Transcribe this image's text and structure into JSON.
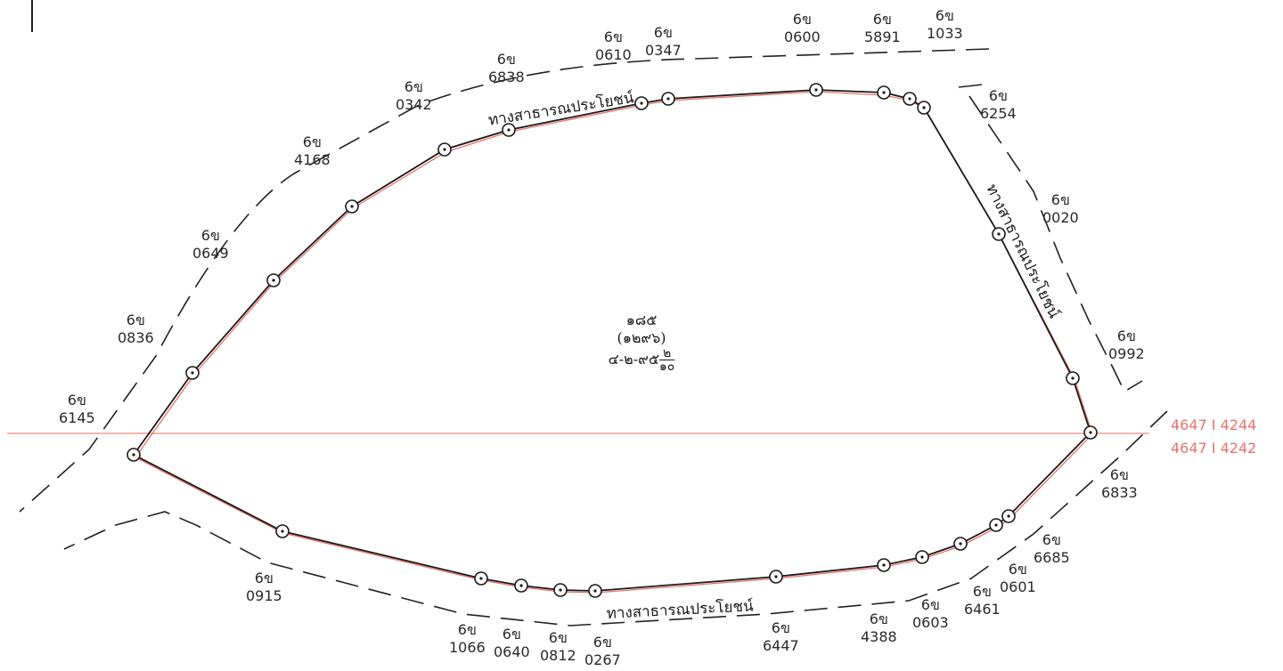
{
  "parcel": {
    "number": "๑๘๕",
    "sub_number": "(๑๒๙๖)",
    "area_main": "๔-๒-๙๕",
    "area_frac_num": "๒",
    "area_frac_den": "๑๐"
  },
  "roads": {
    "north": "ทางสาธารณประโยชน์",
    "east": "ทางสาธารณประโยชน์",
    "south": "ทางสาธารณประโยชน์"
  },
  "grid": {
    "upper": "4647 I 4244",
    "lower": "4647 I 4242"
  },
  "neighbors": [
    {
      "prefix": "6ข",
      "number": "6145"
    },
    {
      "prefix": "6ข",
      "number": "0836"
    },
    {
      "prefix": "6ข",
      "number": "0649"
    },
    {
      "prefix": "6ข",
      "number": "4168"
    },
    {
      "prefix": "6ข",
      "number": "0342"
    },
    {
      "prefix": "6ข",
      "number": "6838"
    },
    {
      "prefix": "6ข",
      "number": "0610"
    },
    {
      "prefix": "6ข",
      "number": "0347"
    },
    {
      "prefix": "6ข",
      "number": "0600"
    },
    {
      "prefix": "6ข",
      "number": "5891"
    },
    {
      "prefix": "6ข",
      "number": "1033"
    },
    {
      "prefix": "6ข",
      "number": "6254"
    },
    {
      "prefix": "6ข",
      "number": "0020"
    },
    {
      "prefix": "6ข",
      "number": "0992"
    },
    {
      "prefix": "6ข",
      "number": "6833"
    },
    {
      "prefix": "6ข",
      "number": "6685"
    },
    {
      "prefix": "6ข",
      "number": "0601"
    },
    {
      "prefix": "6ข",
      "number": "6461"
    },
    {
      "prefix": "6ข",
      "number": "0603"
    },
    {
      "prefix": "6ข",
      "number": "4388"
    },
    {
      "prefix": "6ข",
      "number": "6447"
    },
    {
      "prefix": "6ข",
      "number": "0267"
    },
    {
      "prefix": "6ข",
      "number": "0812"
    },
    {
      "prefix": "6ข",
      "number": "0640"
    },
    {
      "prefix": "6ข",
      "number": "1066"
    },
    {
      "prefix": "6ข",
      "number": "0915"
    }
  ],
  "colors": {
    "boundary": "#1a1a1a",
    "boundary_red": "#e8736b",
    "gridline": "#f08a82",
    "dashed": "#222222"
  }
}
